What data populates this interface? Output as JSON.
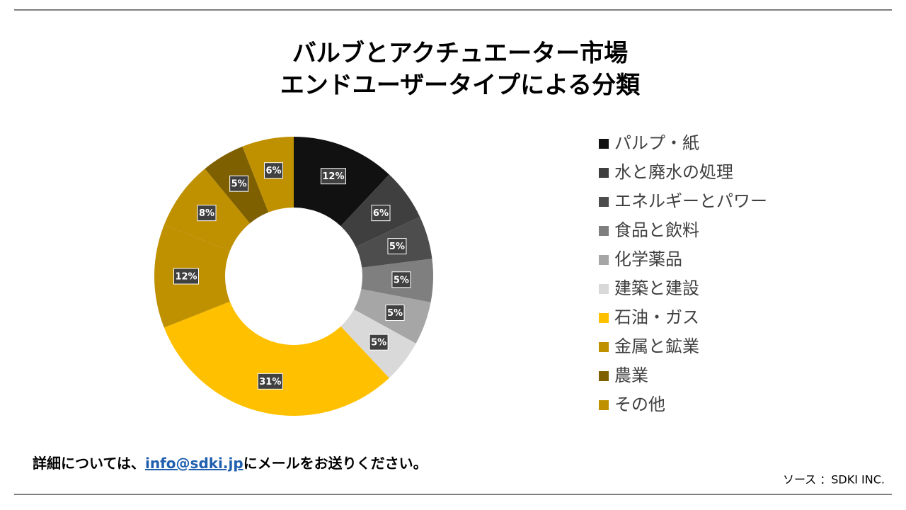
{
  "chart_data": {
    "type": "donut",
    "title": "バルブとアクチュエーター市場",
    "subtitle": "エンドユーザータイプによる分類",
    "categories": [
      "パルプ・紙",
      "水と廃水の処理",
      "エネルギーとパワー",
      "食品と飲料",
      "化学薬品",
      "建築と建設",
      "石油・ガス",
      "金属と鉱業",
      null,
      "農業",
      "その他"
    ],
    "values": [
      12,
      6,
      5,
      5,
      5,
      5,
      31,
      12,
      8,
      5,
      6
    ],
    "value_labels": [
      "12%",
      "6%",
      "5%",
      "5%",
      "5%",
      "5%",
      "31%",
      "12%",
      "8%",
      "5%",
      "6%"
    ],
    "colors": [
      "#111111",
      "#3f3f3f",
      "#4d4d4d",
      "#7f7f7f",
      "#a6a6a6",
      "#d9d9d9",
      "#ffc000",
      "#bf9000",
      "#bf9000",
      "#7f6000",
      "#bf9000"
    ],
    "legend": "right"
  },
  "footer": {
    "text_before": "詳細については、",
    "link": "info@sdki.jp",
    "text_after": "にメールをお送りください。",
    "source": "ソース ：SDKI INC."
  }
}
